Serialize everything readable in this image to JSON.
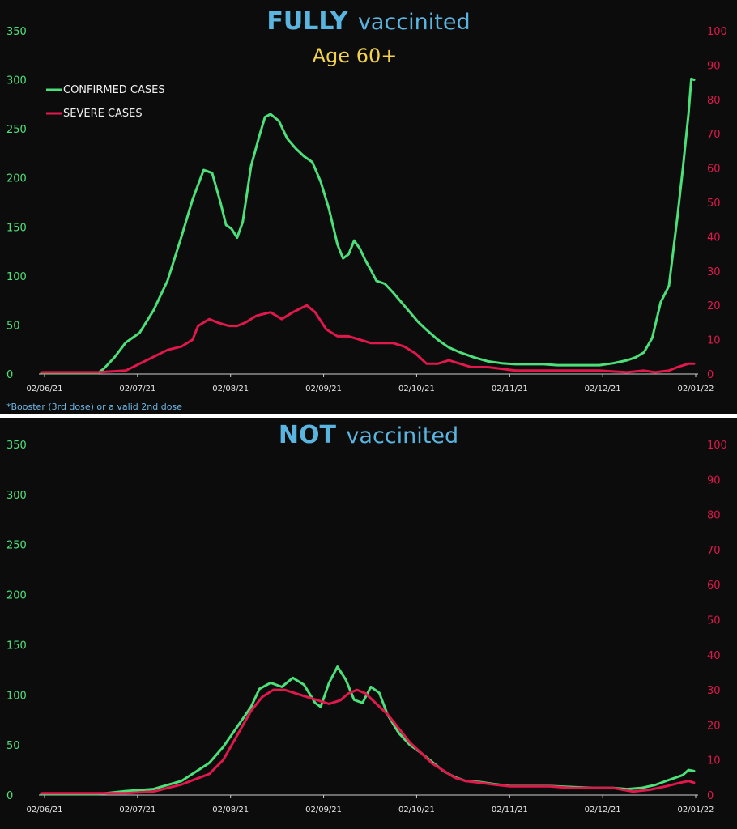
{
  "colors": {
    "background": "#0c0c0c",
    "confirmed": "#4ce07a",
    "severe": "#e0184b",
    "title": "#5ab4e0",
    "subtitle": "#f2d34a",
    "axis_left": "#4ce07a",
    "axis_right": "#e0184b",
    "footnote": "#6bb8e6"
  },
  "chart_data": [
    {
      "type": "line",
      "title_strong": "FULLY",
      "title_rest": "vaccinited",
      "subtitle": "Age 60+",
      "footnote": "*Booster (3rd dose) or a valid 2nd dose",
      "legend": [
        "CONFIRMED CASES",
        "SEVERE CASES"
      ],
      "legend_position": "top-left",
      "grid": false,
      "x_ticks": [
        "02/06/21",
        "02/07/21",
        "02/08/21",
        "02/09/21",
        "02/10/21",
        "02/11/21",
        "02/12/21",
        "02/01/22"
      ],
      "y_left": {
        "min": 0,
        "max": 350,
        "ticks": [
          0,
          50,
          100,
          150,
          200,
          250,
          300,
          350
        ]
      },
      "y_right": {
        "min": 0,
        "max": 100,
        "ticks": [
          0,
          10,
          20,
          30,
          40,
          50,
          60,
          70,
          80,
          90,
          100
        ]
      },
      "series": [
        {
          "name": "CONFIRMED CASES",
          "axis": "left",
          "color": "#4ce07a",
          "points": [
            [
              0,
              1
            ],
            [
              10,
              1
            ],
            [
              20,
              1
            ],
            [
              22,
              5
            ],
            [
              26,
              17
            ],
            [
              30,
              32
            ],
            [
              35,
              42
            ],
            [
              40,
              65
            ],
            [
              45,
              95
            ],
            [
              50,
              140
            ],
            [
              54,
              178
            ],
            [
              58,
              208
            ],
            [
              61,
              205
            ],
            [
              64,
              175
            ],
            [
              66,
              152
            ],
            [
              68,
              148
            ],
            [
              70,
              139
            ],
            [
              72,
              155
            ],
            [
              75,
              212
            ],
            [
              78,
              243
            ],
            [
              80,
              262
            ],
            [
              82,
              265
            ],
            [
              85,
              258
            ],
            [
              88,
              240
            ],
            [
              91,
              230
            ],
            [
              94,
              222
            ],
            [
              97,
              216
            ],
            [
              100,
              196
            ],
            [
              103,
              168
            ],
            [
              106,
              132
            ],
            [
              108,
              118
            ],
            [
              110,
              122
            ],
            [
              112,
              136
            ],
            [
              114,
              128
            ],
            [
              116,
              116
            ],
            [
              118,
              106
            ],
            [
              120,
              95
            ],
            [
              123,
              92
            ],
            [
              126,
              83
            ],
            [
              129,
              73
            ],
            [
              132,
              63
            ],
            [
              135,
              53
            ],
            [
              138,
              45
            ],
            [
              142,
              35
            ],
            [
              146,
              27
            ],
            [
              150,
              22
            ],
            [
              155,
              17
            ],
            [
              160,
              13
            ],
            [
              165,
              11
            ],
            [
              170,
              10
            ],
            [
              175,
              10
            ],
            [
              180,
              10
            ],
            [
              185,
              9
            ],
            [
              190,
              9
            ],
            [
              195,
              9
            ],
            [
              200,
              9
            ],
            [
              205,
              11
            ],
            [
              210,
              14
            ],
            [
              213,
              17
            ],
            [
              216,
              22
            ],
            [
              219,
              37
            ],
            [
              222,
              73
            ],
            [
              225,
              90
            ],
            [
              228,
              160
            ],
            [
              230,
              210
            ],
            [
              232,
              265
            ],
            [
              233,
              301
            ],
            [
              234,
              300
            ]
          ]
        },
        {
          "name": "SEVERE CASES",
          "axis": "right",
          "color": "#e0184b",
          "points": [
            [
              0,
              0.5
            ],
            [
              20,
              0.5
            ],
            [
              30,
              1
            ],
            [
              35,
              3
            ],
            [
              40,
              5
            ],
            [
              45,
              7
            ],
            [
              50,
              8
            ],
            [
              54,
              10
            ],
            [
              56,
              14
            ],
            [
              60,
              16
            ],
            [
              63,
              15
            ],
            [
              67,
              14
            ],
            [
              70,
              14
            ],
            [
              73,
              15
            ],
            [
              77,
              17
            ],
            [
              82,
              18
            ],
            [
              86,
              16
            ],
            [
              90,
              18
            ],
            [
              95,
              20
            ],
            [
              98,
              18
            ],
            [
              102,
              13
            ],
            [
              106,
              11
            ],
            [
              110,
              11
            ],
            [
              114,
              10
            ],
            [
              118,
              9
            ],
            [
              122,
              9
            ],
            [
              126,
              9
            ],
            [
              130,
              8
            ],
            [
              134,
              6
            ],
            [
              138,
              3
            ],
            [
              142,
              3
            ],
            [
              146,
              4
            ],
            [
              150,
              3
            ],
            [
              154,
              2
            ],
            [
              160,
              2
            ],
            [
              165,
              1.5
            ],
            [
              170,
              1
            ],
            [
              180,
              1
            ],
            [
              190,
              1
            ],
            [
              200,
              1
            ],
            [
              210,
              0.5
            ],
            [
              216,
              1
            ],
            [
              220,
              0.5
            ],
            [
              225,
              1
            ],
            [
              228,
              2
            ],
            [
              232,
              3
            ],
            [
              234,
              3
            ]
          ]
        }
      ]
    },
    {
      "type": "line",
      "title_strong": "NOT",
      "title_rest": "vaccinited",
      "grid": false,
      "x_ticks": [
        "02/06/21",
        "02/07/21",
        "02/08/21",
        "02/09/21",
        "02/10/21",
        "02/11/21",
        "02/12/21",
        "02/01/22"
      ],
      "y_left": {
        "min": 0,
        "max": 350,
        "ticks": [
          0,
          50,
          100,
          150,
          200,
          250,
          300,
          350
        ]
      },
      "y_right": {
        "min": 0,
        "max": 100,
        "ticks": [
          0,
          10,
          20,
          30,
          40,
          50,
          60,
          70,
          80,
          90,
          100
        ]
      },
      "series": [
        {
          "name": "CONFIRMED CASES",
          "axis": "left",
          "color": "#4ce07a",
          "points": [
            [
              0,
              1
            ],
            [
              20,
              1
            ],
            [
              30,
              4
            ],
            [
              40,
              6
            ],
            [
              50,
              14
            ],
            [
              60,
              32
            ],
            [
              65,
              48
            ],
            [
              70,
              68
            ],
            [
              75,
              88
            ],
            [
              78,
              106
            ],
            [
              82,
              112
            ],
            [
              86,
              108
            ],
            [
              90,
              117
            ],
            [
              94,
              110
            ],
            [
              98,
              92
            ],
            [
              100,
              88
            ],
            [
              103,
              112
            ],
            [
              106,
              128
            ],
            [
              109,
              115
            ],
            [
              112,
              95
            ],
            [
              115,
              92
            ],
            [
              118,
              108
            ],
            [
              121,
              102
            ],
            [
              124,
              80
            ],
            [
              128,
              62
            ],
            [
              132,
              50
            ],
            [
              136,
              42
            ],
            [
              140,
              33
            ],
            [
              144,
              24
            ],
            [
              148,
              18
            ],
            [
              152,
              14
            ],
            [
              157,
              13
            ],
            [
              162,
              11
            ],
            [
              168,
              9
            ],
            [
              175,
              9
            ],
            [
              182,
              9
            ],
            [
              190,
              8
            ],
            [
              198,
              7
            ],
            [
              205,
              7
            ],
            [
              210,
              6
            ],
            [
              215,
              7
            ],
            [
              220,
              10
            ],
            [
              225,
              15
            ],
            [
              230,
              20
            ],
            [
              232,
              25
            ],
            [
              234,
              24
            ]
          ]
        },
        {
          "name": "SEVERE CASES",
          "axis": "right",
          "color": "#e0184b",
          "points": [
            [
              0,
              0.5
            ],
            [
              20,
              0.5
            ],
            [
              30,
              0.5
            ],
            [
              40,
              1
            ],
            [
              50,
              3
            ],
            [
              60,
              6
            ],
            [
              65,
              10
            ],
            [
              70,
              17
            ],
            [
              75,
              24
            ],
            [
              79,
              28
            ],
            [
              83,
              30
            ],
            [
              87,
              30
            ],
            [
              91,
              29
            ],
            [
              95,
              28
            ],
            [
              99,
              27
            ],
            [
              103,
              26
            ],
            [
              107,
              27
            ],
            [
              110,
              29
            ],
            [
              113,
              30
            ],
            [
              116,
              29
            ],
            [
              120,
              26
            ],
            [
              124,
              23
            ],
            [
              128,
              19
            ],
            [
              132,
              15
            ],
            [
              136,
              12
            ],
            [
              140,
              9
            ],
            [
              144,
              7
            ],
            [
              148,
              5
            ],
            [
              152,
              4
            ],
            [
              157,
              3.5
            ],
            [
              162,
              3
            ],
            [
              168,
              2.5
            ],
            [
              175,
              2.5
            ],
            [
              182,
              2.5
            ],
            [
              190,
              2
            ],
            [
              198,
              2
            ],
            [
              205,
              2
            ],
            [
              212,
              1
            ],
            [
              218,
              1.5
            ],
            [
              224,
              2.5
            ],
            [
              229,
              3.5
            ],
            [
              232,
              4
            ],
            [
              234,
              3.5
            ]
          ]
        }
      ]
    }
  ]
}
